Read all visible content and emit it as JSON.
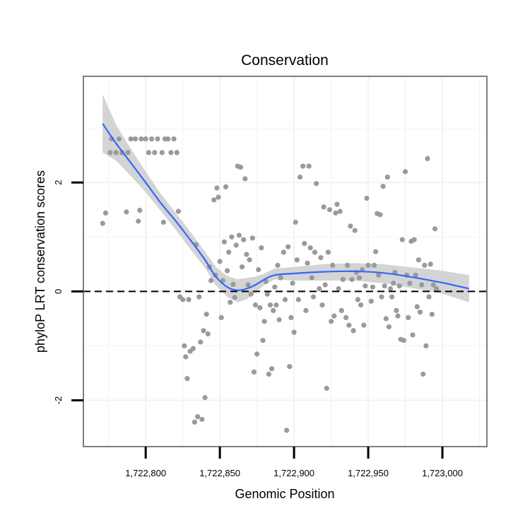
{
  "chart_data": {
    "type": "scatter",
    "title": "Conservation",
    "xlabel": "Genomic Position",
    "ylabel": "phyloP LRT conservation scores",
    "xlim": [
      1722758,
      1723030
    ],
    "ylim": [
      -2.85,
      3.95
    ],
    "x_ticks": [
      1722800,
      1722850,
      1722900,
      1722950,
      1723000
    ],
    "x_tick_labels": [
      "1,722,800",
      "1,722,850",
      "1,722,900",
      "1,722,950",
      "1,723,000"
    ],
    "y_ticks": [
      -2,
      0,
      2
    ],
    "y_tick_labels": [
      "-2",
      "0",
      "2"
    ],
    "grid": true,
    "reference_line": {
      "y": 0,
      "style": "dashed"
    },
    "colors": {
      "points": "#9a9a9a",
      "smooth_line": "#3366ff",
      "confidence_band": "#cccccc",
      "panel_border": "#7f7f7f",
      "grid": "#f2f2f2"
    },
    "series": [
      {
        "name": "observations",
        "points": [
          [
            1722771,
            1.25
          ],
          [
            1722773,
            1.44
          ],
          [
            1722776,
            2.55
          ],
          [
            1722777,
            2.8
          ],
          [
            1722780,
            2.55
          ],
          [
            1722782,
            2.8
          ],
          [
            1722784,
            2.55
          ],
          [
            1722787,
            1.46
          ],
          [
            1722788,
            2.55
          ],
          [
            1722790,
            2.8
          ],
          [
            1722793,
            2.8
          ],
          [
            1722795,
            1.29
          ],
          [
            1722796,
            1.49
          ],
          [
            1722797,
            2.8
          ],
          [
            1722800,
            2.8
          ],
          [
            1722802,
            2.55
          ],
          [
            1722804,
            2.8
          ],
          [
            1722806,
            2.55
          ],
          [
            1722808,
            2.8
          ],
          [
            1722811,
            2.55
          ],
          [
            1722812,
            1.27
          ],
          [
            1722813,
            2.8
          ],
          [
            1722815,
            2.8
          ],
          [
            1722817,
            2.55
          ],
          [
            1722819,
            2.8
          ],
          [
            1722821,
            2.55
          ],
          [
            1722822,
            1.47
          ],
          [
            1722823,
            -0.1
          ],
          [
            1722825,
            -0.15
          ],
          [
            1722826,
            -1.0
          ],
          [
            1722827,
            -1.2
          ],
          [
            1722828,
            -1.6
          ],
          [
            1722829,
            -0.15
          ],
          [
            1722830,
            -1.1
          ],
          [
            1722832,
            -1.05
          ],
          [
            1722833,
            -2.4
          ],
          [
            1722834,
            0.86
          ],
          [
            1722835,
            -2.3
          ],
          [
            1722836,
            -0.1
          ],
          [
            1722837,
            -0.93
          ],
          [
            1722838,
            -2.35
          ],
          [
            1722839,
            -0.72
          ],
          [
            1722840,
            -1.95
          ],
          [
            1722841,
            -0.42
          ],
          [
            1722842,
            -0.78
          ],
          [
            1722843,
            0.45
          ],
          [
            1722844,
            0.2
          ],
          [
            1722846,
            1.68
          ],
          [
            1722847,
            0.3
          ],
          [
            1722848,
            1.9
          ],
          [
            1722849,
            1.73
          ],
          [
            1722850,
            0.55
          ],
          [
            1722851,
            -0.48
          ],
          [
            1722852,
            0.2
          ],
          [
            1722853,
            0.91
          ],
          [
            1722854,
            1.92
          ],
          [
            1722855,
            0.38
          ],
          [
            1722856,
            0.72
          ],
          [
            1722857,
            -0.2
          ],
          [
            1722858,
            1.0
          ],
          [
            1722859,
            0.13
          ],
          [
            1722860,
            -0.11
          ],
          [
            1722861,
            0.85
          ],
          [
            1722862,
            2.3
          ],
          [
            1722863,
            1.03
          ],
          [
            1722864,
            2.28
          ],
          [
            1722865,
            0.45
          ],
          [
            1722866,
            0.95
          ],
          [
            1722867,
            2.07
          ],
          [
            1722868,
            0.68
          ],
          [
            1722869,
            0.12
          ],
          [
            1722870,
            0.58
          ],
          [
            1722871,
            -0.05
          ],
          [
            1722872,
            0.98
          ],
          [
            1722873,
            -1.48
          ],
          [
            1722874,
            -0.25
          ],
          [
            1722875,
            -1.15
          ],
          [
            1722876,
            0.4
          ],
          [
            1722877,
            -0.3
          ],
          [
            1722878,
            0.8
          ],
          [
            1722879,
            -0.9
          ],
          [
            1722880,
            -0.55
          ],
          [
            1722881,
            0.18
          ],
          [
            1722882,
            -0.05
          ],
          [
            1722883,
            -1.52
          ],
          [
            1722884,
            -0.25
          ],
          [
            1722885,
            -1.42
          ],
          [
            1722886,
            -0.35
          ],
          [
            1722887,
            0.08
          ],
          [
            1722888,
            -0.25
          ],
          [
            1722889,
            0.48
          ],
          [
            1722890,
            -0.52
          ],
          [
            1722891,
            0.25
          ],
          [
            1722893,
            0.72
          ],
          [
            1722894,
            -0.15
          ],
          [
            1722895,
            -2.55
          ],
          [
            1722896,
            0.82
          ],
          [
            1722897,
            -1.38
          ],
          [
            1722898,
            -0.48
          ],
          [
            1722899,
            0.15
          ],
          [
            1722900,
            -0.75
          ],
          [
            1722901,
            1.27
          ],
          [
            1722902,
            0.58
          ],
          [
            1722903,
            -0.15
          ],
          [
            1722904,
            2.1
          ],
          [
            1722906,
            2.3
          ],
          [
            1722907,
            0.88
          ],
          [
            1722908,
            -0.35
          ],
          [
            1722909,
            0.52
          ],
          [
            1722910,
            2.3
          ],
          [
            1722911,
            0.8
          ],
          [
            1722912,
            0.25
          ],
          [
            1722913,
            -0.1
          ],
          [
            1722914,
            0.72
          ],
          [
            1722915,
            1.98
          ],
          [
            1722917,
            0.05
          ],
          [
            1722918,
            0.62
          ],
          [
            1722919,
            -0.25
          ],
          [
            1722920,
            1.55
          ],
          [
            1722921,
            0.12
          ],
          [
            1722922,
            -1.78
          ],
          [
            1722923,
            0.72
          ],
          [
            1722924,
            1.5
          ],
          [
            1722925,
            -0.55
          ],
          [
            1722926,
            0.48
          ],
          [
            1722927,
            -0.45
          ],
          [
            1722928,
            1.44
          ],
          [
            1722929,
            1.6
          ],
          [
            1722930,
            0.05
          ],
          [
            1722931,
            1.47
          ],
          [
            1722932,
            -0.35
          ],
          [
            1722933,
            0.22
          ],
          [
            1722935,
            -0.48
          ],
          [
            1722936,
            0.48
          ],
          [
            1722937,
            -0.62
          ],
          [
            1722938,
            1.2
          ],
          [
            1722939,
            0.22
          ],
          [
            1722940,
            -0.72
          ],
          [
            1722941,
            1.12
          ],
          [
            1722942,
            0.35
          ],
          [
            1722943,
            -0.15
          ],
          [
            1722944,
            0.25
          ],
          [
            1722945,
            -0.25
          ],
          [
            1722946,
            0.4
          ],
          [
            1722947,
            -0.62
          ],
          [
            1722948,
            0.1
          ],
          [
            1722949,
            1.71
          ],
          [
            1722950,
            0.48
          ],
          [
            1722952,
            -0.18
          ],
          [
            1722953,
            0.08
          ],
          [
            1722954,
            0.48
          ],
          [
            1722955,
            0.73
          ],
          [
            1722956,
            1.43
          ],
          [
            1722957,
            0.3
          ],
          [
            1722958,
            1.41
          ],
          [
            1722959,
            -0.1
          ],
          [
            1722960,
            1.93
          ],
          [
            1722961,
            0.1
          ],
          [
            1722962,
            -0.5
          ],
          [
            1722963,
            2.1
          ],
          [
            1722964,
            -0.65
          ],
          [
            1722965,
            0.05
          ],
          [
            1722966,
            -0.1
          ],
          [
            1722967,
            0.15
          ],
          [
            1722968,
            0.35
          ],
          [
            1722969,
            -0.35
          ],
          [
            1722970,
            -0.45
          ],
          [
            1722971,
            0.1
          ],
          [
            1722972,
            -0.88
          ],
          [
            1722973,
            0.95
          ],
          [
            1722974,
            -0.9
          ],
          [
            1722975,
            2.2
          ],
          [
            1722976,
            0.3
          ],
          [
            1722977,
            -0.48
          ],
          [
            1722978,
            0.15
          ],
          [
            1722979,
            0.92
          ],
          [
            1722980,
            -0.8
          ],
          [
            1722981,
            0.95
          ],
          [
            1722982,
            0.3
          ],
          [
            1722983,
            -0.28
          ],
          [
            1722984,
            0.58
          ],
          [
            1722985,
            -0.38
          ],
          [
            1722986,
            0.12
          ],
          [
            1722987,
            -1.52
          ],
          [
            1722988,
            0.48
          ],
          [
            1722989,
            -1.0
          ],
          [
            1722990,
            2.44
          ],
          [
            1722991,
            -0.1
          ],
          [
            1722992,
            0.5
          ],
          [
            1722993,
            -0.42
          ],
          [
            1722994,
            0.12
          ],
          [
            1722995,
            1.15
          ],
          [
            1722996,
            0.05
          ]
        ]
      },
      {
        "name": "smooth fit",
        "x": [
          1722771,
          1722780,
          1722790,
          1722800,
          1722810,
          1722820,
          1722830,
          1722840,
          1722847,
          1722855,
          1722862,
          1722868,
          1722874,
          1722880,
          1722887,
          1722900,
          1722920,
          1722940,
          1722960,
          1722980,
          1723000,
          1723018
        ],
        "y": [
          3.08,
          2.72,
          2.36,
          2.0,
          1.63,
          1.3,
          0.95,
          0.58,
          0.28,
          0.08,
          0.02,
          0.05,
          0.12,
          0.22,
          0.3,
          0.33,
          0.36,
          0.37,
          0.34,
          0.26,
          0.16,
          0.05
        ],
        "ci_low": [
          2.55,
          2.4,
          2.12,
          1.82,
          1.48,
          1.14,
          0.78,
          0.43,
          0.12,
          -0.1,
          -0.2,
          -0.15,
          -0.02,
          0.12,
          0.22,
          0.2,
          0.2,
          0.2,
          0.15,
          0.06,
          -0.04,
          -0.2
        ],
        "ci_high": [
          3.62,
          3.06,
          2.62,
          2.2,
          1.8,
          1.45,
          1.1,
          0.73,
          0.46,
          0.28,
          0.22,
          0.25,
          0.27,
          0.33,
          0.42,
          0.45,
          0.5,
          0.52,
          0.5,
          0.44,
          0.38,
          0.3
        ]
      }
    ]
  }
}
